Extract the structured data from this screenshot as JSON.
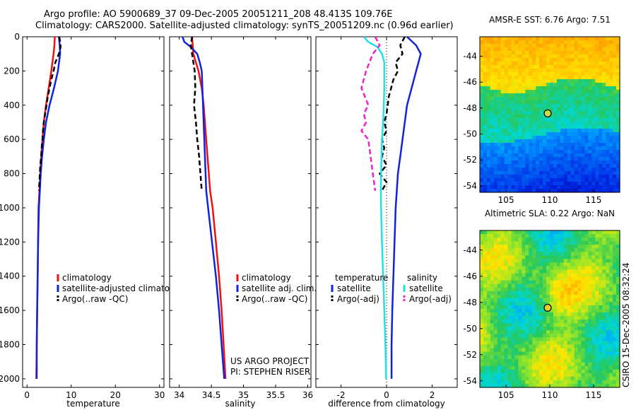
{
  "title_line1": "Argo profile: AO 5900689_37 09-Dec-2005 20051211_208 48.413S 109.76E",
  "title_line2": "Climatology: CARS2000. Satellite-adjusted climatology: synTS_20051209.nc (0.96d earlier)",
  "side_stamp": "CSIRO 15-Dec-2005 08:32:24",
  "colors": {
    "climatology": "#ee1111",
    "satellite": "#1122dd",
    "argo": "#000000",
    "cyan": "#22e0e8",
    "magenta": "#ee22cc"
  },
  "chart_data": [
    {
      "type": "line",
      "id": "temperature",
      "xlabel": "temperature",
      "ylabel": "",
      "xlim": [
        -1,
        31
      ],
      "ylim": [
        2050,
        0
      ],
      "y_reversed": true,
      "xticks": [
        0,
        10,
        20,
        30
      ],
      "yticks": [
        0,
        200,
        400,
        600,
        800,
        1000,
        1200,
        1400,
        1600,
        1800,
        2000
      ],
      "legend": {
        "placement": "lower-right",
        "entries": [
          "climatology",
          "satellite-adjusted climatology",
          "Argo(..raw -QC)"
        ]
      },
      "series": [
        {
          "name": "climatology",
          "color": "#ee1111",
          "dash": false,
          "points": [
            [
              6.3,
              0
            ],
            [
              6.2,
              50
            ],
            [
              6.0,
              100
            ],
            [
              5.5,
              200
            ],
            [
              4.9,
              300
            ],
            [
              4.3,
              400
            ],
            [
              3.8,
              500
            ],
            [
              3.5,
              600
            ],
            [
              3.2,
              700
            ],
            [
              3.0,
              800
            ],
            [
              2.8,
              900
            ],
            [
              2.6,
              1000
            ],
            [
              2.5,
              1200
            ],
            [
              2.4,
              1400
            ],
            [
              2.3,
              1600
            ],
            [
              2.2,
              1800
            ],
            [
              2.1,
              2000
            ]
          ]
        },
        {
          "name": "satellite-adjusted climatology",
          "color": "#1122dd",
          "dash": false,
          "points": [
            [
              7.2,
              0
            ],
            [
              7.4,
              50
            ],
            [
              7.5,
              100
            ],
            [
              7.0,
              200
            ],
            [
              6.1,
              300
            ],
            [
              5.1,
              400
            ],
            [
              4.3,
              500
            ],
            [
              3.8,
              600
            ],
            [
              3.4,
              700
            ],
            [
              3.1,
              800
            ],
            [
              2.9,
              900
            ],
            [
              2.7,
              1000
            ],
            [
              2.5,
              1200
            ],
            [
              2.4,
              1400
            ],
            [
              2.3,
              1600
            ],
            [
              2.2,
              1800
            ],
            [
              2.2,
              2000
            ]
          ]
        },
        {
          "name": "Argo(..raw -QC)",
          "color": "#000000",
          "dash": true,
          "points": [
            [
              7.3,
              0
            ],
            [
              7.5,
              30
            ],
            [
              7.6,
              60
            ],
            [
              7.2,
              100
            ],
            [
              6.4,
              150
            ],
            [
              6.0,
              200
            ],
            [
              5.5,
              250
            ],
            [
              5.1,
              300
            ],
            [
              4.7,
              350
            ],
            [
              4.4,
              400
            ],
            [
              4.1,
              450
            ],
            [
              3.8,
              500
            ],
            [
              3.6,
              550
            ],
            [
              3.5,
              600
            ],
            [
              3.3,
              650
            ],
            [
              3.2,
              700
            ],
            [
              3.0,
              750
            ],
            [
              2.9,
              800
            ],
            [
              2.8,
              850
            ],
            [
              2.7,
              900
            ]
          ]
        }
      ]
    },
    {
      "type": "line",
      "id": "salinity",
      "xlabel": "salinity",
      "ylabel": "",
      "xlim": [
        33.85,
        36.05
      ],
      "ylim": [
        2050,
        0
      ],
      "y_reversed": true,
      "xticks": [
        34,
        34.5,
        35,
        35.5,
        36
      ],
      "yticks": [
        0,
        200,
        400,
        600,
        800,
        1000,
        1200,
        1400,
        1600,
        1800,
        2000
      ],
      "legend": {
        "placement": "lower-right",
        "entries": [
          "climatology",
          "satellite adj. clim.",
          "Argo(..raw -QC)"
        ]
      },
      "annotations": [
        "US ARGO PROJECT",
        "PI: STEPHEN RISER"
      ],
      "series": [
        {
          "name": "climatology",
          "color": "#ee1111",
          "dash": false,
          "points": [
            [
              34.2,
              0
            ],
            [
              34.22,
              100
            ],
            [
              34.3,
              200
            ],
            [
              34.35,
              300
            ],
            [
              34.38,
              400
            ],
            [
              34.4,
              500
            ],
            [
              34.42,
              600
            ],
            [
              34.44,
              700
            ],
            [
              34.46,
              800
            ],
            [
              34.48,
              900
            ],
            [
              34.52,
              1000
            ],
            [
              34.57,
              1200
            ],
            [
              34.62,
              1400
            ],
            [
              34.66,
              1600
            ],
            [
              34.69,
              1800
            ],
            [
              34.72,
              2000
            ]
          ]
        },
        {
          "name": "satellite adj. clim.",
          "color": "#1122dd",
          "dash": false,
          "points": [
            [
              34.05,
              0
            ],
            [
              34.08,
              30
            ],
            [
              34.18,
              60
            ],
            [
              34.28,
              100
            ],
            [
              34.32,
              150
            ],
            [
              34.35,
              200
            ],
            [
              34.36,
              300
            ],
            [
              34.37,
              400
            ],
            [
              34.38,
              500
            ],
            [
              34.39,
              600
            ],
            [
              34.4,
              700
            ],
            [
              34.41,
              800
            ],
            [
              34.42,
              900
            ],
            [
              34.45,
              1000
            ],
            [
              34.51,
              1200
            ],
            [
              34.57,
              1400
            ],
            [
              34.62,
              1600
            ],
            [
              34.66,
              1800
            ],
            [
              34.7,
              2000
            ]
          ]
        },
        {
          "name": "Argo(..raw -QC)",
          "color": "#000000",
          "dash": true,
          "points": [
            [
              34.2,
              0
            ],
            [
              34.18,
              50
            ],
            [
              34.2,
              100
            ],
            [
              34.24,
              200
            ],
            [
              34.25,
              300
            ],
            [
              34.23,
              400
            ],
            [
              34.26,
              500
            ],
            [
              34.28,
              600
            ],
            [
              34.31,
              700
            ],
            [
              34.33,
              800
            ],
            [
              34.35,
              900
            ]
          ]
        }
      ]
    },
    {
      "type": "line",
      "id": "difference",
      "xlabel": "difference from climatology",
      "ylabel": "",
      "xlim": [
        -3.1,
        3.1
      ],
      "ylim": [
        2050,
        0
      ],
      "y_reversed": true,
      "xticks": [
        -2,
        0,
        2
      ],
      "yticks": [
        0,
        200,
        400,
        600,
        800,
        1000,
        1200,
        1400,
        1600,
        1800,
        2000
      ],
      "legend": {
        "placement": "lower-right",
        "columns": [
          "temperature",
          "salinity"
        ],
        "entries": [
          "satellite",
          "Argo(-adj)",
          "satellite",
          "Argo(-adj)"
        ]
      },
      "series": [
        {
          "name": "satellite",
          "group": "temperature",
          "color": "#1122dd",
          "dash": false,
          "points": [
            [
              0.9,
              0
            ],
            [
              1.3,
              50
            ],
            [
              1.5,
              100
            ],
            [
              1.4,
              150
            ],
            [
              1.3,
              200
            ],
            [
              1.1,
              300
            ],
            [
              0.9,
              400
            ],
            [
              0.8,
              500
            ],
            [
              0.7,
              600
            ],
            [
              0.6,
              700
            ],
            [
              0.5,
              800
            ],
            [
              0.45,
              900
            ],
            [
              0.4,
              1000
            ],
            [
              0.35,
              1200
            ],
            [
              0.3,
              1400
            ],
            [
              0.25,
              1600
            ],
            [
              0.22,
              1800
            ],
            [
              0.22,
              2000
            ]
          ]
        },
        {
          "name": "Argo(-adj)",
          "group": "temperature",
          "color": "#000000",
          "dash": true,
          "points": [
            [
              0.8,
              0
            ],
            [
              0.6,
              50
            ],
            [
              0.7,
              100
            ],
            [
              0.4,
              150
            ],
            [
              0.5,
              200
            ],
            [
              0.3,
              250
            ],
            [
              0.2,
              300
            ],
            [
              0.1,
              350
            ],
            [
              0.05,
              400
            ],
            [
              0,
              450
            ],
            [
              -0.1,
              500
            ],
            [
              0,
              550
            ],
            [
              -0.2,
              600
            ],
            [
              -0.1,
              650
            ],
            [
              -0.2,
              700
            ],
            [
              0,
              750
            ],
            [
              -0.3,
              800
            ],
            [
              0,
              850
            ],
            [
              -0.2,
              900
            ]
          ]
        },
        {
          "name": "satellite",
          "group": "salinity",
          "color": "#22e0e8",
          "dash": false,
          "points": [
            [
              -1.0,
              0
            ],
            [
              -0.8,
              30
            ],
            [
              -0.4,
              60
            ],
            [
              -0.2,
              100
            ],
            [
              -0.1,
              150
            ],
            [
              -0.1,
              200
            ],
            [
              -0.1,
              300
            ],
            [
              -0.12,
              400
            ],
            [
              -0.15,
              500
            ],
            [
              -0.2,
              600
            ],
            [
              -0.22,
              700
            ],
            [
              -0.24,
              800
            ],
            [
              -0.25,
              900
            ],
            [
              -0.24,
              1000
            ],
            [
              -0.2,
              1200
            ],
            [
              -0.15,
              1400
            ],
            [
              -0.1,
              1600
            ],
            [
              -0.05,
              1800
            ],
            [
              -0.02,
              2000
            ]
          ]
        },
        {
          "name": "Argo(-adj)",
          "group": "salinity",
          "color": "#ee22cc",
          "dash": true,
          "points": [
            [
              -0.5,
              0
            ],
            [
              -0.3,
              50
            ],
            [
              -0.6,
              100
            ],
            [
              -0.9,
              200
            ],
            [
              -1.1,
              300
            ],
            [
              -0.8,
              400
            ],
            [
              -1.0,
              450
            ],
            [
              -0.9,
              500
            ],
            [
              -1.1,
              550
            ],
            [
              -0.8,
              600
            ],
            [
              -0.7,
              700
            ],
            [
              -0.6,
              800
            ],
            [
              -0.5,
              900
            ]
          ]
        }
      ]
    },
    {
      "type": "heatmap",
      "id": "sst-map",
      "title": "AMSR-E SST: 6.76 Argo: 7.51",
      "xlim": [
        102,
        118
      ],
      "ylim": [
        -54.5,
        -42.5
      ],
      "xticks": [
        105,
        110,
        115
      ],
      "yticks": [
        -44,
        -46,
        -48,
        -50,
        -52,
        -54
      ],
      "marker": {
        "lon": 109.76,
        "lat": -48.413
      }
    },
    {
      "type": "heatmap",
      "id": "sla-map",
      "title": "Altimetric SLA: 0.22 Argo: NaN",
      "xlim": [
        102,
        118
      ],
      "ylim": [
        -54.5,
        -42.5
      ],
      "xticks": [
        105,
        110,
        115
      ],
      "yticks": [
        -44,
        -46,
        -48,
        -50,
        -52,
        -54
      ],
      "marker": {
        "lon": 109.76,
        "lat": -48.413
      }
    }
  ]
}
